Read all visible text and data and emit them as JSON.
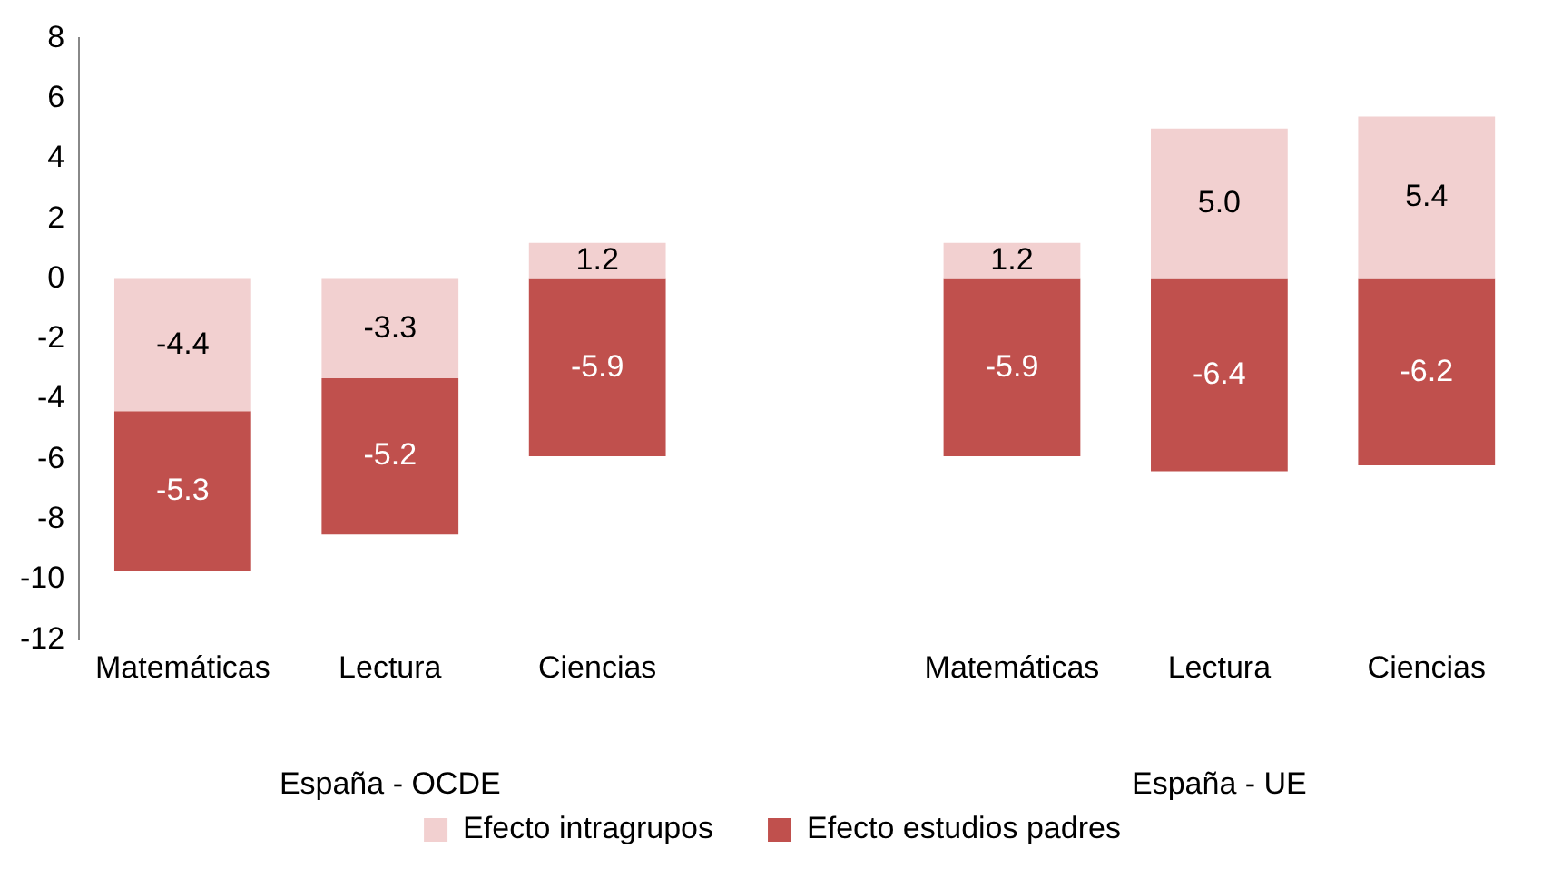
{
  "chart_data": {
    "type": "bar",
    "stacked": true,
    "categories": [
      "Matemáticas",
      "Lectura",
      "Ciencias",
      null,
      "Matemáticas",
      "Lectura",
      "Ciencias"
    ],
    "series": [
      {
        "name": "Efecto intragrupos",
        "color": "#f2d0d0",
        "values": [
          -4.4,
          -3.3,
          1.2,
          null,
          1.2,
          5.0,
          5.4
        ],
        "value_labels": [
          "-4.4",
          "-3.3",
          "1.2",
          null,
          "1.2",
          "5.0",
          "5.4"
        ]
      },
      {
        "name": "Efecto estudios padres",
        "color": "#c0504d",
        "values": [
          -5.3,
          -5.2,
          -5.9,
          null,
          -5.9,
          -6.4,
          -6.2
        ],
        "value_labels": [
          "-5.3",
          "-5.2",
          "-5.9",
          null,
          "-5.9",
          "-6.4",
          "-6.2"
        ]
      }
    ],
    "ylim": [
      -12,
      8
    ],
    "yticks": [
      -12,
      -10,
      -8,
      -6,
      -4,
      -2,
      0,
      2,
      4,
      6,
      8
    ],
    "grid": false,
    "legend": "bottom",
    "annotations": [
      "España - OCDE",
      "España - UE"
    ]
  }
}
